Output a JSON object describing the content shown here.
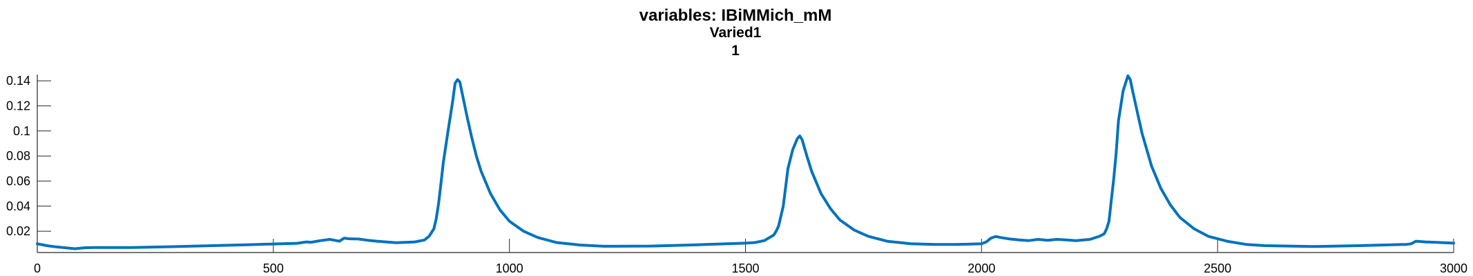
{
  "chart_data": {
    "type": "line",
    "title": [
      "variables: IBiMMich_mM",
      "Varied1",
      "1"
    ],
    "xlabel": "",
    "ylabel": "",
    "xlim": [
      0,
      3000
    ],
    "ylim": [
      0.003,
      0.145
    ],
    "x_ticks": [
      0,
      500,
      1000,
      1500,
      2000,
      2500,
      3000
    ],
    "x_tick_labels": [
      "0",
      "500",
      "1000",
      "1500",
      "2000",
      "2500",
      "3000"
    ],
    "y_ticks": [
      0.02,
      0.04,
      0.06,
      0.08,
      0.1,
      0.12,
      0.14
    ],
    "y_tick_labels": [
      "0.02",
      "0.04",
      "0.06",
      "0.08",
      "0.1",
      "0.12",
      "0.14"
    ],
    "grid": false,
    "series": [
      {
        "color": "#0072BD",
        "x": [
          0,
          20,
          40,
          60,
          80,
          100,
          120,
          150,
          200,
          300,
          400,
          450,
          500,
          550,
          570,
          580,
          600,
          620,
          640,
          650,
          660,
          680,
          700,
          720,
          760,
          800,
          820,
          830,
          840,
          845,
          850,
          855,
          860,
          870,
          880,
          885,
          890,
          895,
          900,
          910,
          920,
          930,
          940,
          960,
          980,
          1000,
          1030,
          1060,
          1100,
          1150,
          1200,
          1300,
          1400,
          1500,
          1520,
          1540,
          1560,
          1565,
          1570,
          1580,
          1590,
          1600,
          1610,
          1615,
          1620,
          1630,
          1640,
          1660,
          1680,
          1700,
          1730,
          1760,
          1800,
          1850,
          1900,
          1950,
          2000,
          2010,
          2020,
          2030,
          2040,
          2060,
          2080,
          2100,
          2120,
          2140,
          2160,
          2180,
          2200,
          2230,
          2250,
          2260,
          2265,
          2270,
          2275,
          2280,
          2285,
          2290,
          2300,
          2310,
          2315,
          2320,
          2330,
          2340,
          2360,
          2380,
          2400,
          2420,
          2450,
          2480,
          2520,
          2560,
          2600,
          2700,
          2800,
          2900,
          2910,
          2920,
          2940,
          2960,
          2980,
          3000
        ],
        "y": [
          0.01,
          0.0085,
          0.0075,
          0.0068,
          0.006,
          0.0068,
          0.007,
          0.007,
          0.007,
          0.0078,
          0.0088,
          0.0093,
          0.0098,
          0.0104,
          0.0115,
          0.0112,
          0.0125,
          0.0135,
          0.012,
          0.0145,
          0.014,
          0.0138,
          0.0128,
          0.012,
          0.0108,
          0.0115,
          0.013,
          0.016,
          0.022,
          0.03,
          0.042,
          0.058,
          0.075,
          0.1,
          0.124,
          0.138,
          0.141,
          0.139,
          0.13,
          0.112,
          0.095,
          0.08,
          0.068,
          0.05,
          0.037,
          0.028,
          0.02,
          0.015,
          0.011,
          0.009,
          0.008,
          0.0082,
          0.0092,
          0.0105,
          0.011,
          0.0125,
          0.017,
          0.02,
          0.024,
          0.04,
          0.07,
          0.085,
          0.094,
          0.096,
          0.093,
          0.08,
          0.068,
          0.05,
          0.038,
          0.029,
          0.021,
          0.016,
          0.012,
          0.01,
          0.0095,
          0.0095,
          0.01,
          0.0115,
          0.0145,
          0.0158,
          0.015,
          0.0138,
          0.013,
          0.0125,
          0.0135,
          0.0128,
          0.0135,
          0.013,
          0.0125,
          0.0135,
          0.016,
          0.018,
          0.022,
          0.028,
          0.045,
          0.062,
          0.082,
          0.108,
          0.132,
          0.144,
          0.141,
          0.132,
          0.115,
          0.098,
          0.072,
          0.054,
          0.041,
          0.031,
          0.022,
          0.016,
          0.012,
          0.0095,
          0.0085,
          0.0078,
          0.0085,
          0.0095,
          0.01,
          0.012,
          0.0115,
          0.0112,
          0.0108,
          0.0105
        ]
      }
    ]
  }
}
